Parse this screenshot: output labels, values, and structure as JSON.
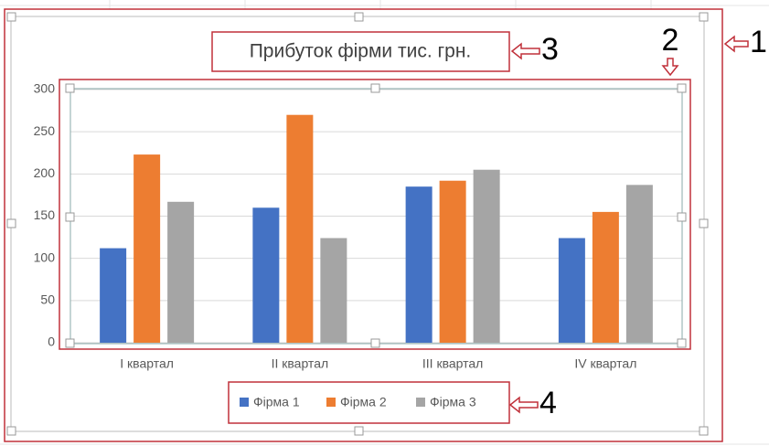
{
  "chart_data": {
    "type": "bar",
    "title": "Прибуток фірми тис. грн.",
    "categories": [
      "I квартал",
      "II квартал",
      "III квартал",
      "IV квартал"
    ],
    "series": [
      {
        "name": "Фірма 1",
        "color": "#4472c4",
        "values": [
          112,
          160,
          185,
          124
        ]
      },
      {
        "name": "Фірма 2",
        "color": "#ed7d31",
        "values": [
          223,
          270,
          192,
          155
        ]
      },
      {
        "name": "Фірма 3",
        "color": "#a5a5a5",
        "values": [
          167,
          124,
          205,
          187
        ]
      }
    ],
    "ylim": [
      0,
      300
    ],
    "yticks": [
      0,
      50,
      100,
      150,
      200,
      250,
      300
    ],
    "grid": true,
    "legend": "bottom"
  },
  "callouts": [
    "1",
    "2",
    "3",
    "4"
  ]
}
